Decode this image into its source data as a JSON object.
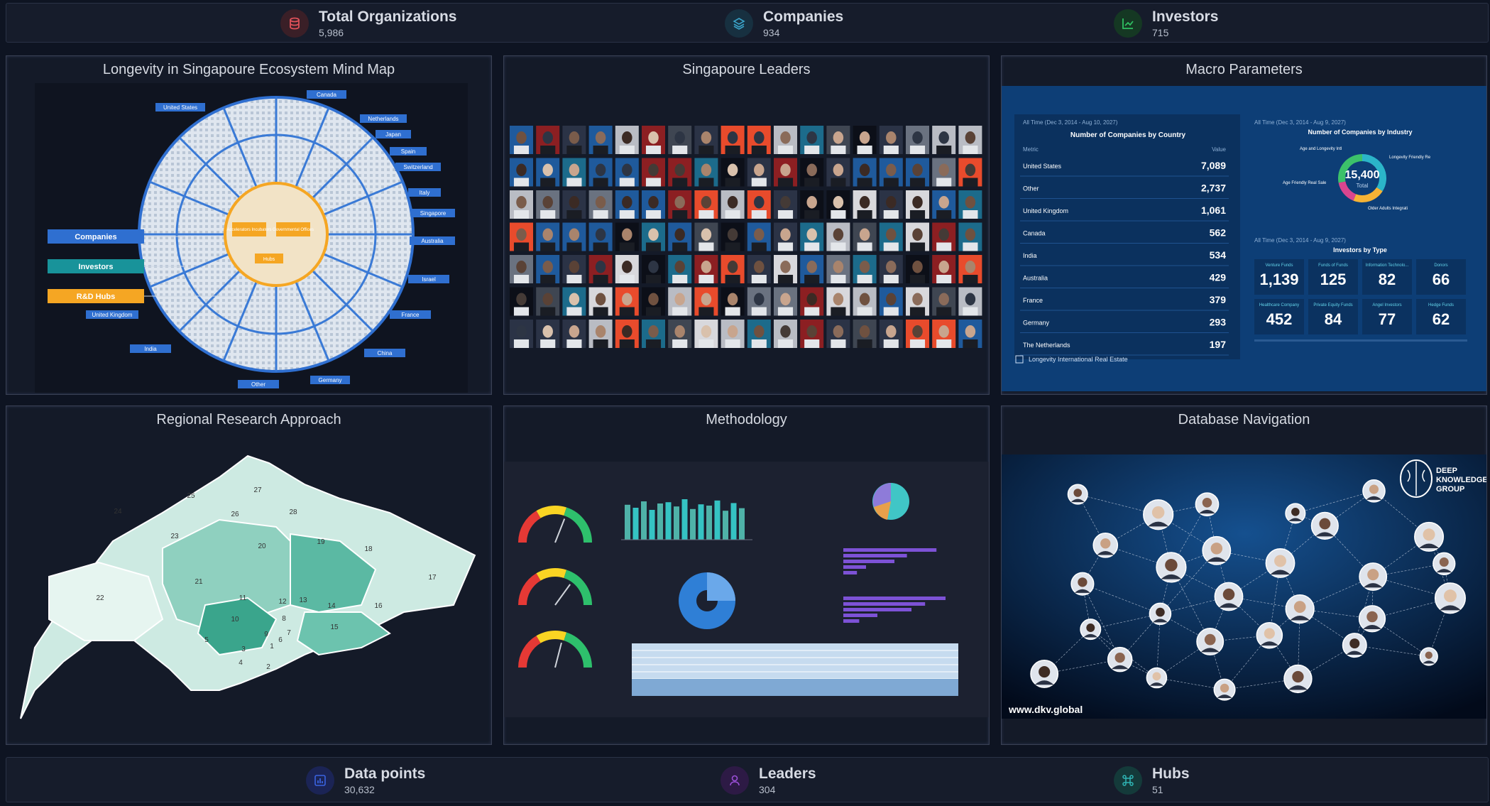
{
  "top_stats": [
    {
      "label": "Total Organizations",
      "value": "5,986",
      "icon": "database-icon",
      "color": "#e0525a"
    },
    {
      "label": "Companies",
      "value": "934",
      "icon": "layers-icon",
      "color": "#3aa3c8"
    },
    {
      "label": "Investors",
      "value": "715",
      "icon": "chart-line-icon",
      "color": "#2fbf62"
    }
  ],
  "bottom_stats": [
    {
      "label": "Data points",
      "value": "30,632",
      "icon": "bar-chart-icon",
      "color": "#3a63e0"
    },
    {
      "label": "Leaders",
      "value": "304",
      "icon": "user-icon",
      "color": "#9a4fd6"
    },
    {
      "label": "Hubs",
      "value": "51",
      "icon": "command-icon",
      "color": "#2fb5b5"
    }
  ],
  "panels": {
    "mindmap": {
      "title": "Longevity in Singapoure Ecosystem Mind Map",
      "left_labels": [
        "Companies",
        "Investors",
        "R&D Hubs",
        "United Kingdom"
      ],
      "country_labels": [
        "United States",
        "Canada",
        "Netherlands",
        "Japan",
        "Spain",
        "Switzerland",
        "Italy",
        "Singapore",
        "Australia",
        "Israel",
        "France",
        "China",
        "Germany",
        "Other",
        "India"
      ],
      "center_labels": [
        "Accelerators Incubators",
        "Governmental Offices",
        "Hubs"
      ]
    },
    "leaders": {
      "title": "Singapoure Leaders"
    },
    "macro": {
      "title": "Macro Parameters",
      "country_table": {
        "range": "All Time (Dec 3, 2014 - Aug 10, 2027)",
        "title": "Number of Companies by Country",
        "col_metric": "Metric",
        "col_value": "Value",
        "rows": [
          {
            "name": "United States",
            "value": "7,089"
          },
          {
            "name": "Other",
            "value": "2,737"
          },
          {
            "name": "United Kingdom",
            "value": "1,061"
          },
          {
            "name": "Canada",
            "value": "562"
          },
          {
            "name": "India",
            "value": "534"
          },
          {
            "name": "Australia",
            "value": "429"
          },
          {
            "name": "France",
            "value": "379"
          },
          {
            "name": "Germany",
            "value": "293"
          },
          {
            "name": "The Netherlands",
            "value": "197"
          }
        ],
        "footer": "Longevity International Real Estate"
      },
      "industry": {
        "range": "All Time (Dec 3, 2014 - Aug 9, 2027)",
        "title": "Number of Companies by Industry",
        "total": "15,400",
        "total_label": "Total",
        "slices": [
          {
            "label": "Age and Longevity Intl",
            "color": "#2bb5c9",
            "value": 0.34
          },
          {
            "label": "Longevity Friendly Re",
            "color": "#f5b335",
            "value": 0.22
          },
          {
            "label": "Age Friendly Real Sale",
            "color": "#d9458f",
            "value": 0.16
          },
          {
            "label": "Older Adults Integrati",
            "color": "#3cc16a",
            "value": 0.28
          }
        ]
      },
      "investors_type": {
        "range": "All Time (Dec 3, 2014 - Aug 9, 2027)",
        "title": "Investors by Type",
        "tiles": [
          {
            "label": "Venture Funds",
            "value": "1,139"
          },
          {
            "label": "Funds of Funds",
            "value": "125"
          },
          {
            "label": "Information Technolo...",
            "value": "82"
          },
          {
            "label": "Donors",
            "value": "66"
          },
          {
            "label": "Healthcare Company",
            "value": "452"
          },
          {
            "label": "Private Equity Funds",
            "value": "84"
          },
          {
            "label": "Angel Investors",
            "value": "77"
          },
          {
            "label": "Hedge Funds",
            "value": "62"
          }
        ]
      }
    },
    "regional": {
      "title": "Regional Research Approach",
      "regions": [
        "1",
        "2",
        "3",
        "4",
        "5",
        "6",
        "7",
        "8",
        "9",
        "10",
        "11",
        "12",
        "13",
        "14",
        "15",
        "16",
        "17",
        "18",
        "19",
        "20",
        "21",
        "22",
        "23",
        "24",
        "25",
        "26",
        "27",
        "28"
      ]
    },
    "methodology": {
      "title": "Methodology",
      "bars": [
        0.82,
        0.75,
        0.9,
        0.7,
        0.85,
        0.88,
        0.78,
        0.95,
        0.72,
        0.83,
        0.8,
        0.92,
        0.68,
        0.86,
        0.74
      ],
      "gauge_values": [
        0.62,
        0.7,
        0.58
      ]
    },
    "database": {
      "title": "Database Navigation",
      "logo": "DEEP KNOWLEDGE GROUP",
      "url": "www.dkv.global"
    }
  }
}
